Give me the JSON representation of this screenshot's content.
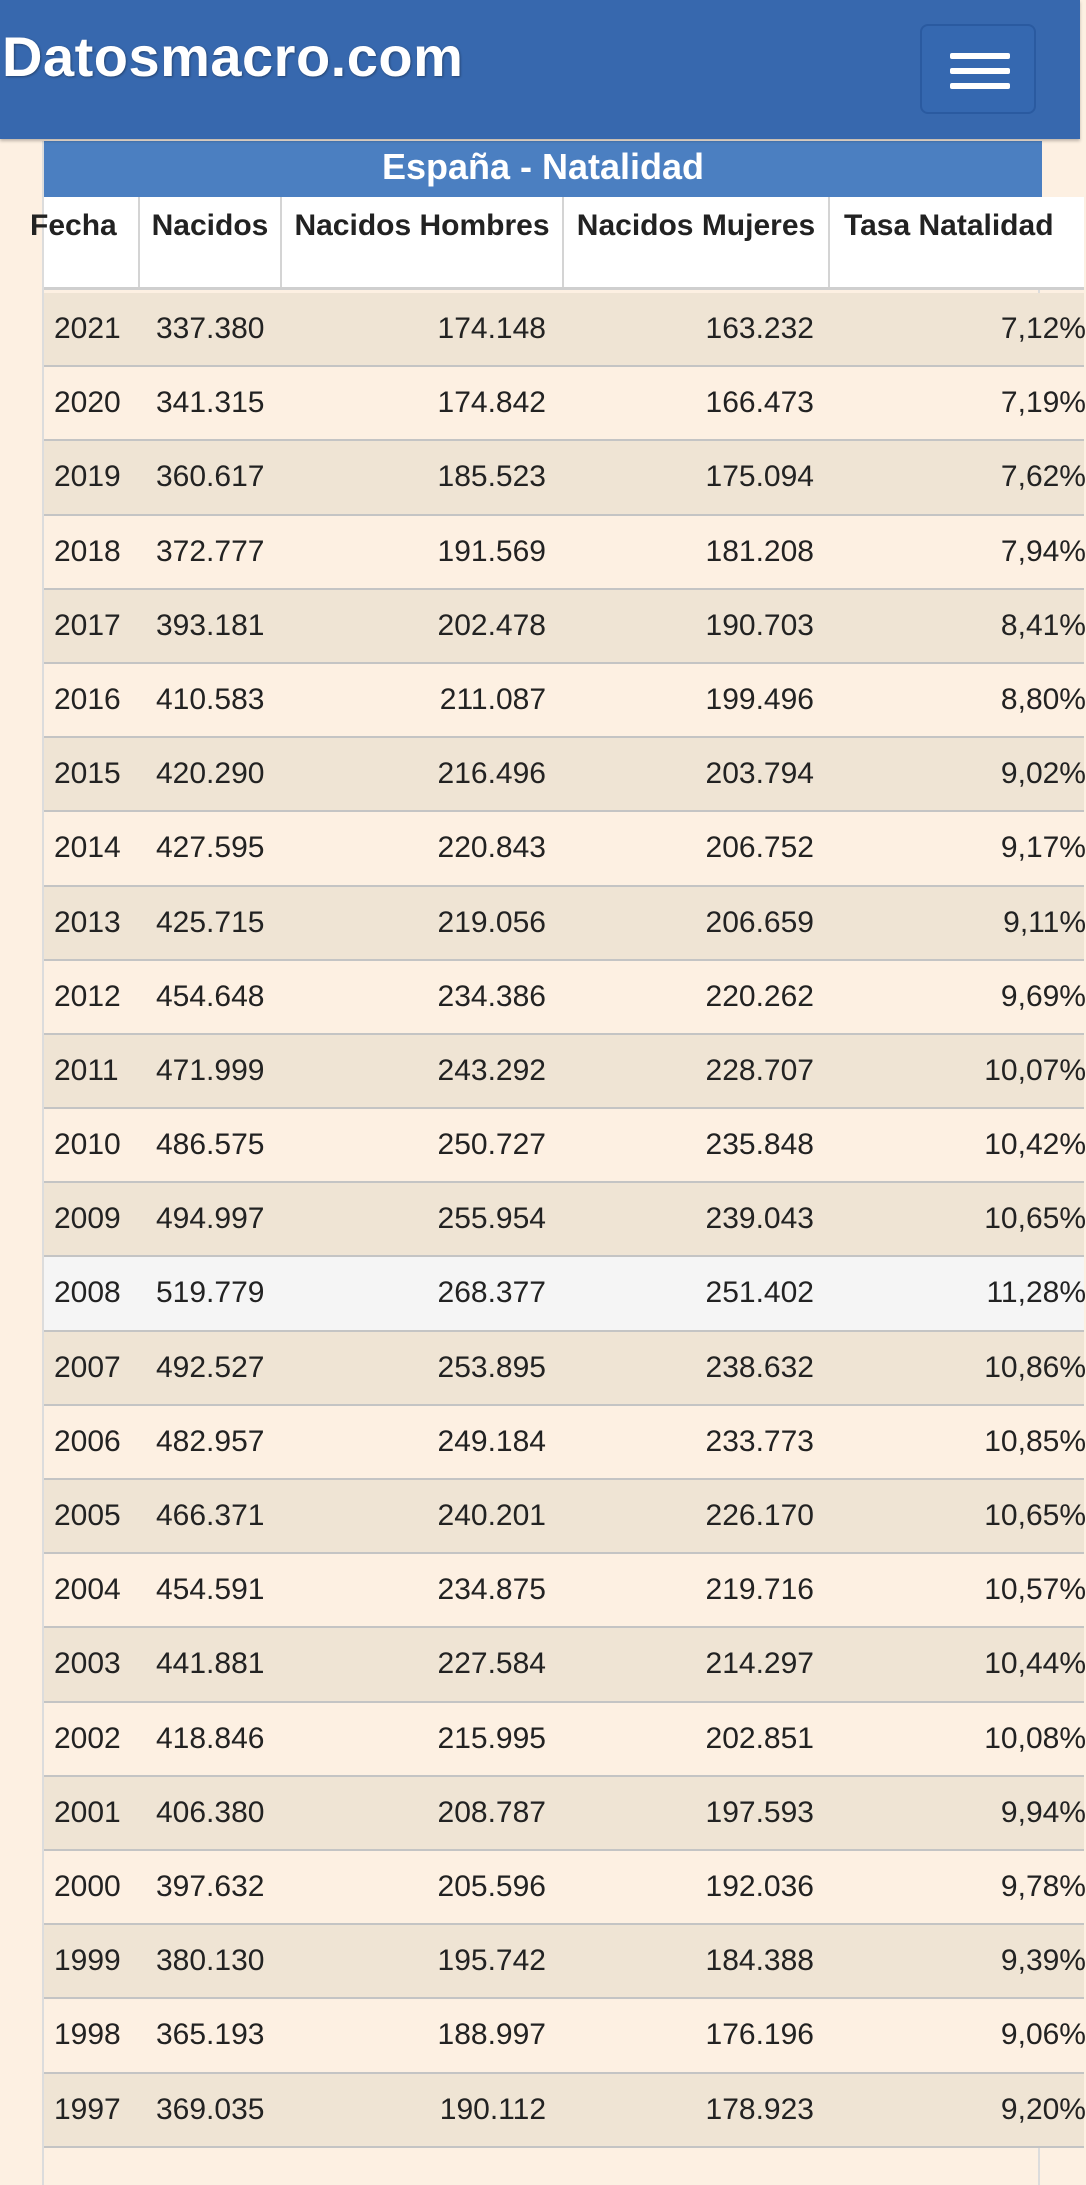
{
  "header": {
    "brand": "Datosmacro.com",
    "menu_icon": "hamburger-menu-icon"
  },
  "table": {
    "caption": "España - Natalidad",
    "columns": [
      "Fecha",
      "Nacidos",
      "Nacidos Hombres",
      "Nacidos Mujeres",
      "Tasa Natalidad"
    ],
    "rows": [
      [
        "2021",
        "337.380",
        "174.148",
        "163.232",
        "7,12%"
      ],
      [
        "2020",
        "341.315",
        "174.842",
        "166.473",
        "7,19%"
      ],
      [
        "2019",
        "360.617",
        "185.523",
        "175.094",
        "7,62%"
      ],
      [
        "2018",
        "372.777",
        "191.569",
        "181.208",
        "7,94%"
      ],
      [
        "2017",
        "393.181",
        "202.478",
        "190.703",
        "8,41%"
      ],
      [
        "2016",
        "410.583",
        "211.087",
        "199.496",
        "8,80%"
      ],
      [
        "2015",
        "420.290",
        "216.496",
        "203.794",
        "9,02%"
      ],
      [
        "2014",
        "427.595",
        "220.843",
        "206.752",
        "9,17%"
      ],
      [
        "2013",
        "425.715",
        "219.056",
        "206.659",
        "9,11%"
      ],
      [
        "2012",
        "454.648",
        "234.386",
        "220.262",
        "9,69%"
      ],
      [
        "2011",
        "471.999",
        "243.292",
        "228.707",
        "10,07%"
      ],
      [
        "2010",
        "486.575",
        "250.727",
        "235.848",
        "10,42%"
      ],
      [
        "2009",
        "494.997",
        "255.954",
        "239.043",
        "10,65%"
      ],
      [
        "2008",
        "519.779",
        "268.377",
        "251.402",
        "11,28%"
      ],
      [
        "2007",
        "492.527",
        "253.895",
        "238.632",
        "10,86%"
      ],
      [
        "2006",
        "482.957",
        "249.184",
        "233.773",
        "10,85%"
      ],
      [
        "2005",
        "466.371",
        "240.201",
        "226.170",
        "10,65%"
      ],
      [
        "2004",
        "454.591",
        "234.875",
        "219.716",
        "10,57%"
      ],
      [
        "2003",
        "441.881",
        "227.584",
        "214.297",
        "10,44%"
      ],
      [
        "2002",
        "418.846",
        "215.995",
        "202.851",
        "10,08%"
      ],
      [
        "2001",
        "406.380",
        "208.787",
        "197.593",
        "9,94%"
      ],
      [
        "2000",
        "397.632",
        "205.596",
        "192.036",
        "9,78%"
      ],
      [
        "1999",
        "380.130",
        "195.742",
        "184.388",
        "9,39%"
      ],
      [
        "1998",
        "365.193",
        "188.997",
        "176.196",
        "9,06%"
      ],
      [
        "1997",
        "369.035",
        "190.112",
        "178.923",
        "9,20%"
      ]
    ],
    "highlighted_row": 13
  }
}
